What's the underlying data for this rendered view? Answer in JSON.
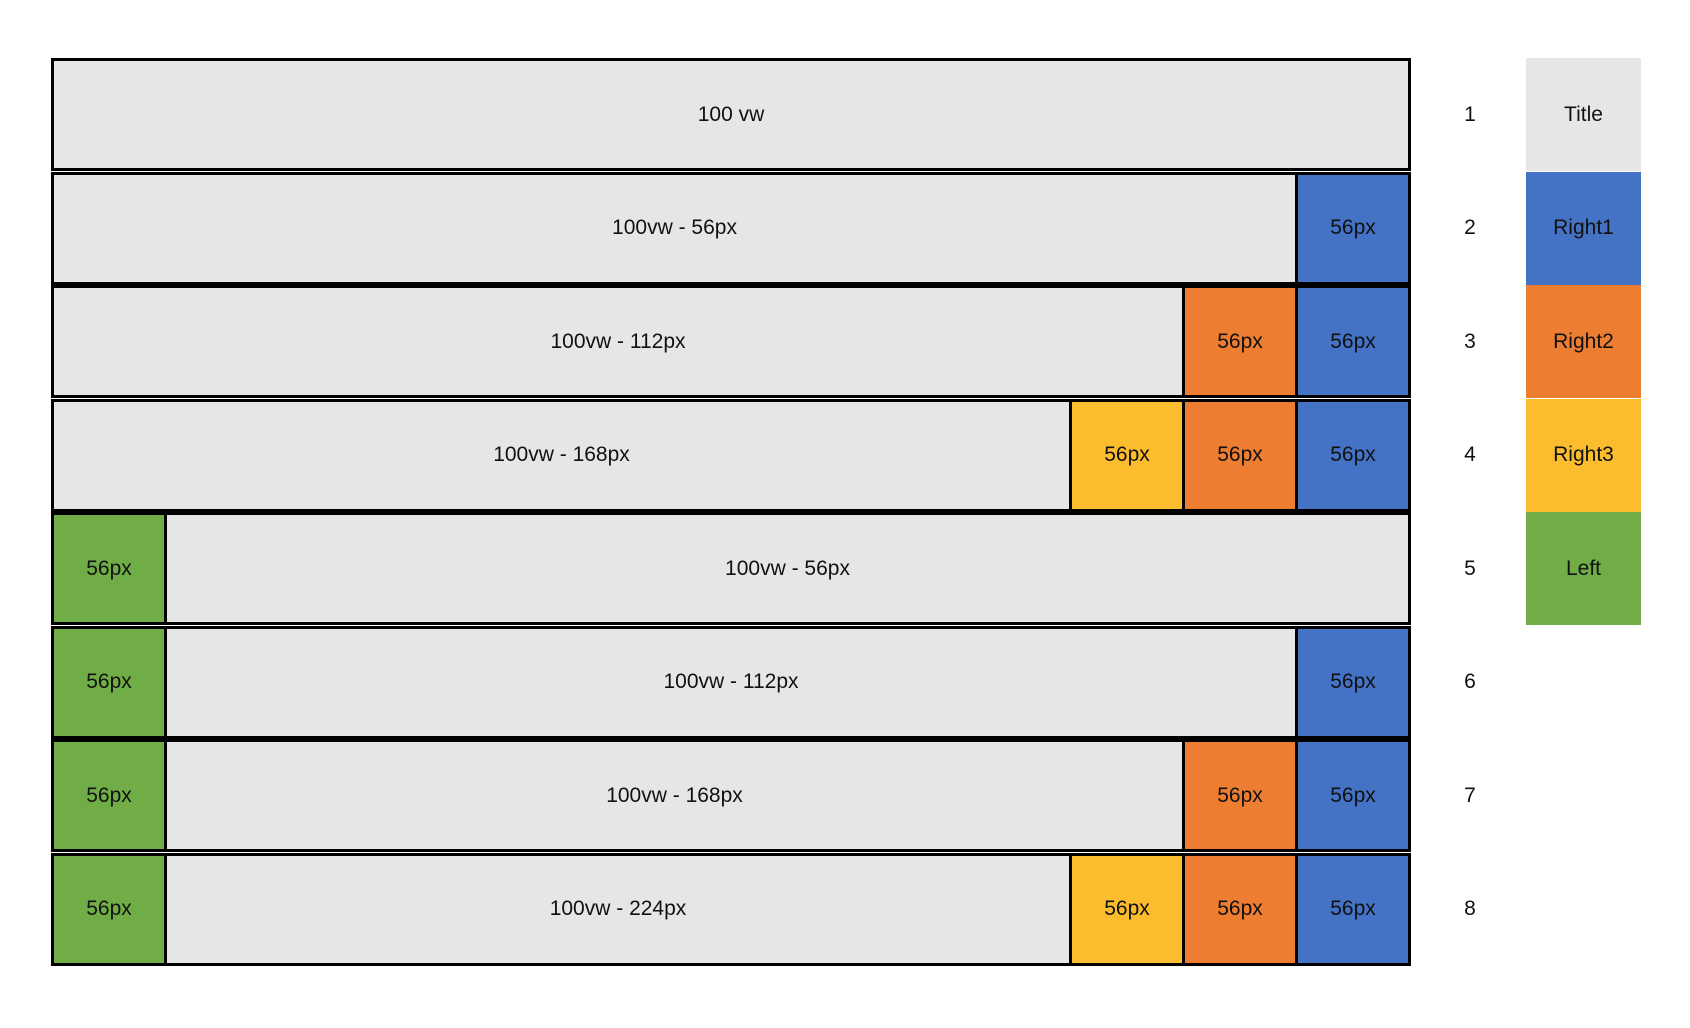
{
  "fill_colors": {
    "title": "#e6e6e6",
    "right1": "#4472c4",
    "right2": "#ed7d31",
    "right3": "#fbbd2e",
    "left": "#70ad47"
  },
  "rows": [
    {
      "number": "1",
      "left": [],
      "main": "100 vw",
      "right": []
    },
    {
      "number": "2",
      "left": [],
      "main": "100vw - 56px",
      "right": [
        {
          "label": "56px",
          "slot": "right1"
        }
      ]
    },
    {
      "number": "3",
      "left": [],
      "main": "100vw - 112px",
      "right": [
        {
          "label": "56px",
          "slot": "right2"
        },
        {
          "label": "56px",
          "slot": "right1"
        }
      ]
    },
    {
      "number": "4",
      "left": [],
      "main": "100vw - 168px",
      "right": [
        {
          "label": "56px",
          "slot": "right3"
        },
        {
          "label": "56px",
          "slot": "right2"
        },
        {
          "label": "56px",
          "slot": "right1"
        }
      ]
    },
    {
      "number": "5",
      "left": [
        {
          "label": "56px",
          "slot": "left"
        }
      ],
      "main": "100vw - 56px",
      "right": []
    },
    {
      "number": "6",
      "left": [
        {
          "label": "56px",
          "slot": "left"
        }
      ],
      "main": "100vw - 112px",
      "right": [
        {
          "label": "56px",
          "slot": "right1"
        }
      ]
    },
    {
      "number": "7",
      "left": [
        {
          "label": "56px",
          "slot": "left"
        }
      ],
      "main": "100vw - 168px",
      "right": [
        {
          "label": "56px",
          "slot": "right2"
        },
        {
          "label": "56px",
          "slot": "right1"
        }
      ]
    },
    {
      "number": "8",
      "left": [
        {
          "label": "56px",
          "slot": "left"
        }
      ],
      "main": "100vw - 224px",
      "right": [
        {
          "label": "56px",
          "slot": "right3"
        },
        {
          "label": "56px",
          "slot": "right2"
        },
        {
          "label": "56px",
          "slot": "right1"
        }
      ]
    }
  ],
  "legend": [
    {
      "label": "Title",
      "slot": "title"
    },
    {
      "label": "Right1",
      "slot": "right1"
    },
    {
      "label": "Right2",
      "slot": "right2"
    },
    {
      "label": "Right3",
      "slot": "right3"
    },
    {
      "label": "Left",
      "slot": "left"
    }
  ]
}
